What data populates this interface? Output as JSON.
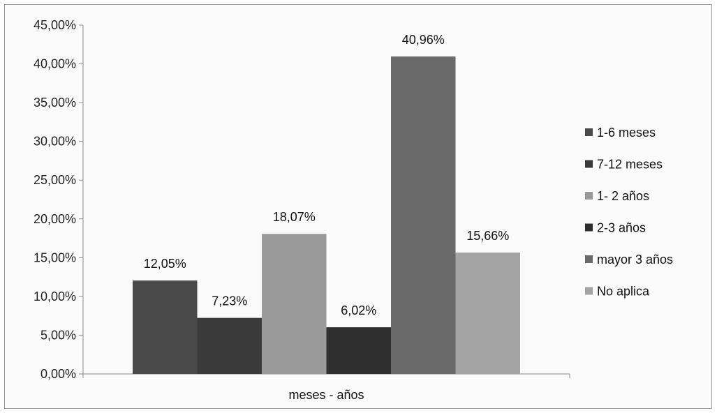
{
  "chart_data": {
    "type": "bar",
    "title": "",
    "xlabel": "meses - años",
    "ylabel": "",
    "categories": [
      "meses - años"
    ],
    "ylim": [
      0,
      45
    ],
    "yticks": [
      "0,00%",
      "5,00%",
      "10,00%",
      "15,00%",
      "20,00%",
      "25,00%",
      "30,00%",
      "35,00%",
      "40,00%",
      "45,00%"
    ],
    "grid": false,
    "legend_position": "right",
    "series": [
      {
        "name": "1-6 meses",
        "value": 12.05,
        "label": "12,05%",
        "color": "#4a4a4a"
      },
      {
        "name": "7-12 meses",
        "value": 7.23,
        "label": "7,23%",
        "color": "#3a3a3a"
      },
      {
        "name": "1- 2 años",
        "value": 18.07,
        "label": "18,07%",
        "color": "#9a9a9a"
      },
      {
        "name": "2-3 años",
        "value": 6.02,
        "label": "6,02%",
        "color": "#2f2f2f"
      },
      {
        "name": "mayor 3 años",
        "value": 40.96,
        "label": "40,96%",
        "color": "#6a6a6a"
      },
      {
        "name": "No aplica",
        "value": 15.66,
        "label": "15,66%",
        "color": "#a4a4a4"
      }
    ]
  }
}
